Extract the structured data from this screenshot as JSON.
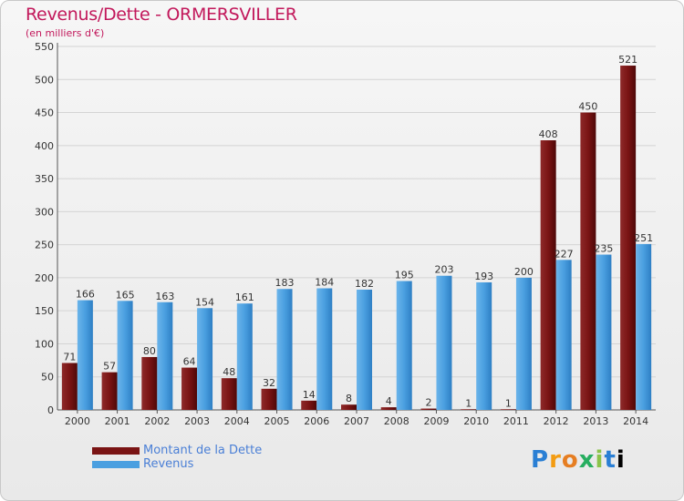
{
  "header": {
    "title": "Revenus/Dette - ORMERSVILLER",
    "subtitle": "(en milliers d'€)"
  },
  "legend": {
    "items": [
      {
        "label": "Montant de la Dette",
        "color": "#7a1414"
      },
      {
        "label": "Revenus",
        "color": "#4a9fe0"
      }
    ]
  },
  "logo": {
    "text": "Proxiti"
  },
  "chart_data": {
    "type": "bar",
    "categories": [
      "2000",
      "2001",
      "2002",
      "2003",
      "2004",
      "2005",
      "2006",
      "2007",
      "2008",
      "2009",
      "2010",
      "2011",
      "2012",
      "2013",
      "2014"
    ],
    "series": [
      {
        "name": "Montant de la Dette",
        "color": "#7a1414",
        "values": [
          71,
          57,
          80,
          64,
          48,
          32,
          14,
          8,
          4,
          2,
          1,
          1,
          408,
          450,
          521
        ]
      },
      {
        "name": "Revenus",
        "color": "#4a9fe0",
        "values": [
          166,
          165,
          163,
          154,
          161,
          183,
          184,
          182,
          195,
          203,
          193,
          200,
          227,
          235,
          251
        ]
      }
    ],
    "ylim": [
      0,
      550
    ],
    "yticks": [
      0,
      50,
      100,
      150,
      200,
      250,
      300,
      350,
      400,
      450,
      500,
      550
    ],
    "grid": true,
    "legend_position": "bottom-left"
  }
}
